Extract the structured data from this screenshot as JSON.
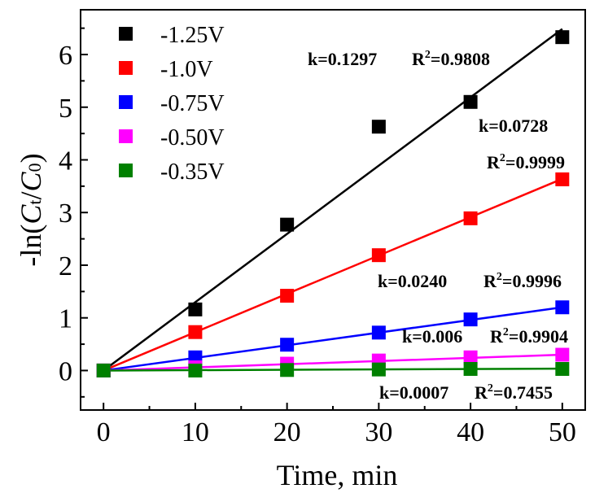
{
  "chart_data": {
    "type": "scatter",
    "xlabel": "Time, min",
    "ylabel": "-ln(Ct/C0)",
    "ylabel_parts": {
      "pre": "-ln(",
      "c1": "C",
      "s1": "t",
      "slash": "/",
      "c2": "C",
      "s2": "0",
      "post": ")"
    },
    "xlim": [
      -2.5,
      52.5
    ],
    "ylim": [
      -0.75,
      6.85
    ],
    "xticks": [
      "0",
      "10",
      "20",
      "30",
      "40",
      "50"
    ],
    "xtick_values": [
      0,
      10,
      20,
      30,
      40,
      50
    ],
    "yticks": [
      "0",
      "1",
      "2",
      "3",
      "4",
      "5",
      "6"
    ],
    "ytick_values": [
      0,
      1,
      2,
      3,
      4,
      5,
      6
    ],
    "legend_position": "top-left",
    "grid": false,
    "series": [
      {
        "name": "-1.25V",
        "color": "#000000",
        "x": [
          0,
          10,
          20,
          30,
          40,
          50
        ],
        "y": [
          0,
          1.16,
          2.77,
          4.63,
          5.1,
          6.33
        ],
        "fit": {
          "k": "k=0.1297",
          "r2": "0.9808",
          "slope": 0.1297
        }
      },
      {
        "name": "-1.0V",
        "color": "#ff0000",
        "x": [
          0,
          10,
          20,
          30,
          40,
          50
        ],
        "y": [
          0,
          0.73,
          1.42,
          2.19,
          2.89,
          3.63
        ],
        "fit": {
          "k": "k=0.0728",
          "r2": "0.9999",
          "slope": 0.0728
        }
      },
      {
        "name": "-0.75V",
        "color": "#0000ff",
        "x": [
          0,
          10,
          20,
          30,
          40,
          50
        ],
        "y": [
          0,
          0.25,
          0.49,
          0.72,
          0.97,
          1.2
        ],
        "fit": {
          "k": "k=0.0240",
          "r2": "0.9996",
          "slope": 0.024
        }
      },
      {
        "name": "-0.50V",
        "color": "#ff00ff",
        "x": [
          0,
          10,
          20,
          30,
          40,
          50
        ],
        "y": [
          0,
          0.06,
          0.13,
          0.19,
          0.25,
          0.3
        ],
        "fit": {
          "k": "k=0.006",
          "r2": "0.9904",
          "slope": 0.006
        }
      },
      {
        "name": "-0.35V",
        "color": "#008000",
        "x": [
          0,
          10,
          20,
          30,
          40,
          50
        ],
        "y": [
          0,
          0.0,
          0.01,
          0.02,
          0.03,
          0.03
        ],
        "fit": {
          "k": "k=0.0007",
          "r2": "0.7455",
          "slope": 0.0007
        }
      }
    ],
    "r2_prefix": "R",
    "r2_sup": "2",
    "r2_suffix": "="
  }
}
